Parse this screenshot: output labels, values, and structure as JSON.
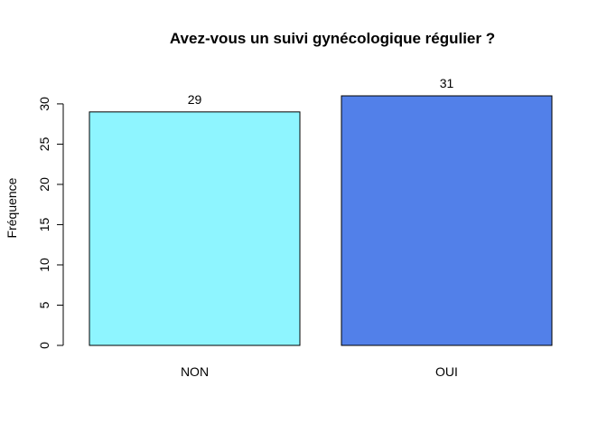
{
  "chart_data": {
    "type": "bar",
    "title": "Avez-vous un suivi gynécologique régulier ?",
    "xlabel": "",
    "ylabel": "Fréquence",
    "categories": [
      "NON",
      "OUI"
    ],
    "values": [
      29,
      31
    ],
    "data_labels": [
      "29",
      "31"
    ],
    "bar_colors": [
      "#8EF5FF",
      "#5280E9"
    ],
    "ylim": [
      0,
      31
    ],
    "yticks": [
      0,
      5,
      10,
      15,
      20,
      25,
      30
    ],
    "ytick_labels": [
      "0",
      "5",
      "10",
      "15",
      "20",
      "25",
      "30"
    ],
    "grid": false,
    "legend": "none"
  }
}
